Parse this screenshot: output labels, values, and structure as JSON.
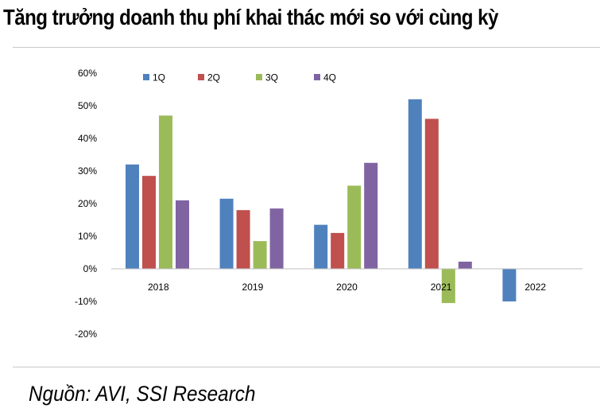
{
  "header": {
    "title": "Tăng trưởng doanh thu phí khai thác mới so với cùng kỳ"
  },
  "footer": {
    "source": "Nguồn: AVI, SSI Research"
  },
  "chart_data": {
    "type": "bar",
    "title": "Tăng trưởng doanh thu phí khai thác mới so với cùng kỳ",
    "categories": [
      "2018",
      "2019",
      "2020",
      "2021",
      "2022"
    ],
    "series": [
      {
        "name": "1Q",
        "color": "#4f81bd",
        "values": [
          32,
          21.5,
          13.5,
          52,
          -10
        ]
      },
      {
        "name": "2Q",
        "color": "#c0504d",
        "values": [
          28.5,
          18,
          11,
          46,
          null
        ]
      },
      {
        "name": "3Q",
        "color": "#9bbb59",
        "values": [
          47,
          8.5,
          25.5,
          -10.5,
          null
        ]
      },
      {
        "name": "4Q",
        "color": "#8064a2",
        "values": [
          21,
          18.5,
          32.5,
          2.2,
          null
        ]
      }
    ],
    "ylim": [
      -20,
      60
    ],
    "yticks": [
      -20,
      -10,
      0,
      10,
      20,
      30,
      40,
      50,
      60
    ],
    "ytick_labels": [
      "-20%",
      "-10%",
      "0%",
      "10%",
      "20%",
      "30%",
      "40%",
      "50%",
      "60%"
    ],
    "legend_position": "top-left",
    "grid": false
  }
}
